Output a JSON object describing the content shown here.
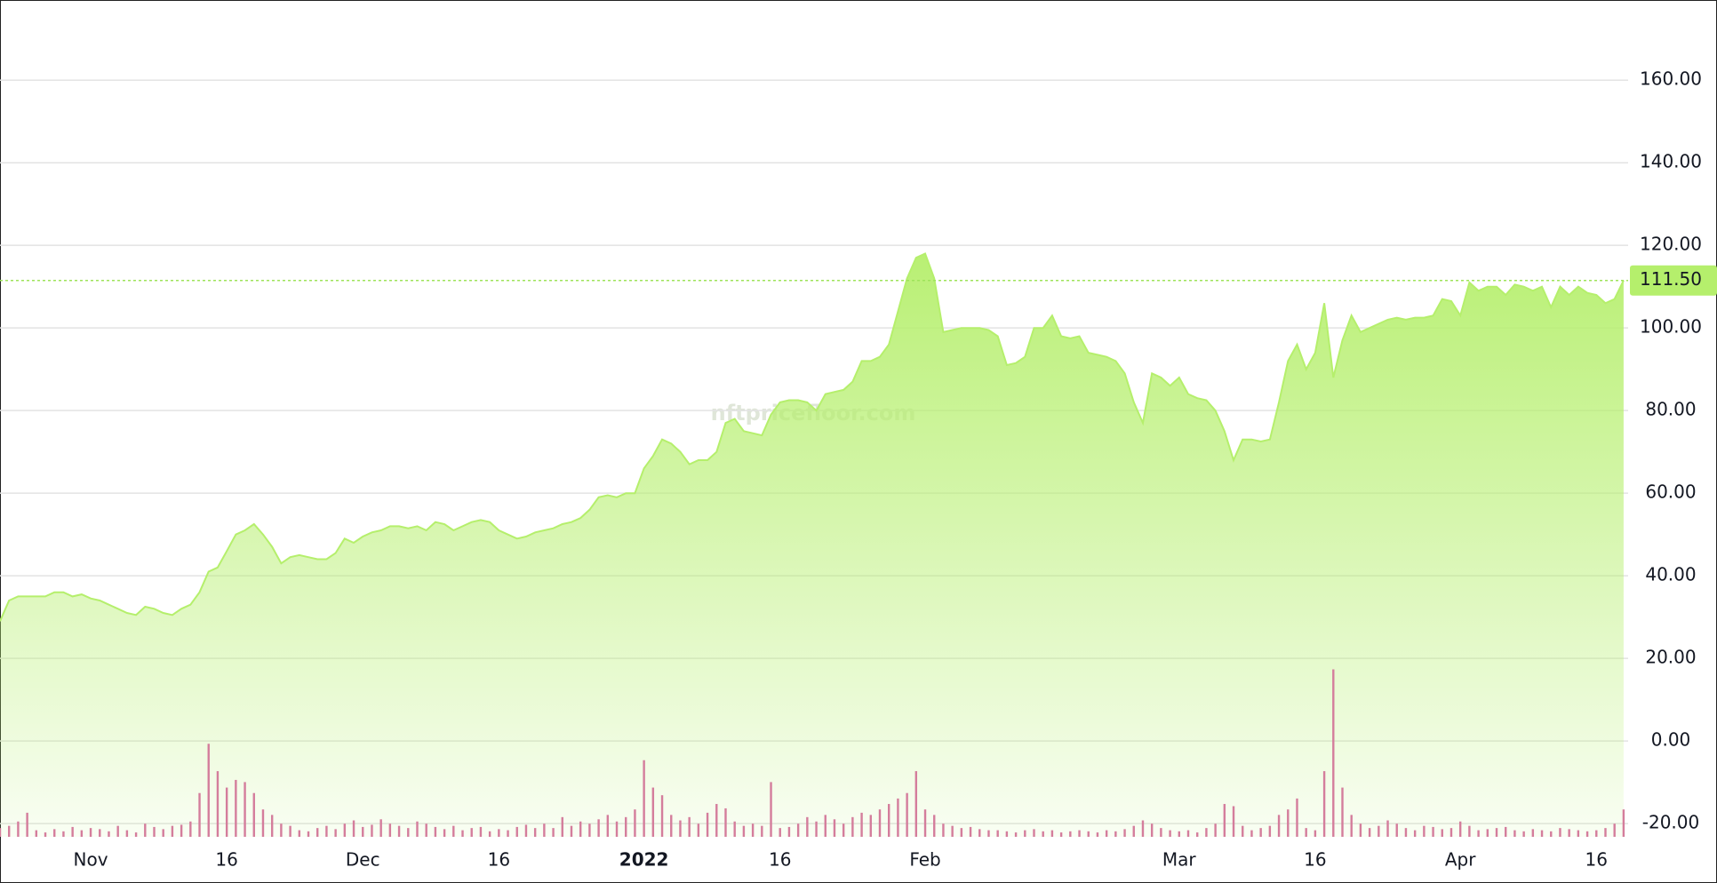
{
  "chart_data": {
    "type": "area",
    "watermark": "nftpricefloor.com",
    "color": "#b5ef6c",
    "values": [
      29,
      34,
      35,
      35,
      35,
      35,
      36,
      36,
      35,
      35.5,
      34.5,
      34,
      33,
      32,
      31,
      30.5,
      32.5,
      32,
      31,
      30.5,
      32,
      33,
      36,
      41,
      42,
      46,
      50,
      51,
      52.5,
      50,
      47,
      43,
      44.5,
      45,
      44.5,
      44,
      44,
      45.5,
      49,
      48,
      49.5,
      50.5,
      51,
      52,
      52,
      51.5,
      52,
      51,
      53,
      52.5,
      51,
      52,
      53,
      53.5,
      53,
      51,
      50,
      49,
      49.5,
      50.5,
      51,
      51.5,
      52.5,
      53,
      54,
      56,
      59,
      59.5,
      59,
      60,
      60,
      66,
      69,
      73,
      72,
      70,
      67,
      68,
      68,
      70,
      77,
      78,
      75,
      74.5,
      74,
      79,
      82,
      82.5,
      82.5,
      82,
      80,
      84,
      84.5,
      85,
      87,
      92,
      92,
      93,
      96,
      104,
      112,
      117,
      118,
      112,
      99,
      99.5,
      100,
      100,
      100,
      99.5,
      98,
      91,
      91.5,
      93,
      100,
      100,
      103,
      98,
      97.5,
      98,
      94,
      93.5,
      93,
      92,
      89,
      82,
      77,
      89,
      88,
      86,
      88,
      84,
      83,
      82.5,
      80,
      75,
      68,
      73,
      73,
      72.5,
      73,
      82,
      92,
      96,
      90,
      94,
      106,
      88,
      97,
      103,
      99,
      100,
      101,
      102,
      102.5,
      102,
      102.5,
      102.5,
      103,
      107,
      106.5,
      103,
      111,
      109,
      110,
      110,
      108,
      110.5,
      110,
      109,
      110,
      105,
      110,
      108,
      110,
      108.5,
      108,
      106,
      107,
      111.5
    ],
    "volume": {
      "color": "#d47d9c",
      "values": [
        8,
        10,
        14,
        22,
        6,
        4,
        7,
        5,
        9,
        6,
        8,
        7,
        5,
        10,
        6,
        4,
        12,
        9,
        7,
        10,
        11,
        14,
        40,
        85,
        60,
        45,
        52,
        50,
        40,
        25,
        20,
        12,
        10,
        6,
        5,
        8,
        10,
        7,
        12,
        15,
        9,
        11,
        16,
        12,
        10,
        8,
        14,
        12,
        9,
        7,
        10,
        6,
        8,
        9,
        5,
        7,
        6,
        9,
        11,
        8,
        12,
        8,
        18,
        10,
        14,
        12,
        16,
        20,
        14,
        18,
        25,
        70,
        45,
        38,
        20,
        15,
        18,
        12,
        22,
        30,
        26,
        14,
        10,
        12,
        10,
        50,
        8,
        9,
        12,
        18,
        14,
        20,
        16,
        12,
        18,
        22,
        20,
        25,
        30,
        35,
        40,
        60,
        25,
        20,
        12,
        10,
        8,
        9,
        7,
        6,
        6,
        5,
        4,
        6,
        7,
        5,
        6,
        4,
        5,
        6,
        5,
        4,
        6,
        5,
        7,
        10,
        15,
        12,
        8,
        6,
        5,
        6,
        4,
        8,
        12,
        30,
        28,
        10,
        6,
        8,
        10,
        20,
        25,
        35,
        8,
        6,
        60,
        153,
        45,
        20,
        12,
        8,
        10,
        15,
        12,
        8,
        6,
        10,
        9,
        7,
        8,
        14,
        10,
        6,
        7,
        8,
        9,
        6,
        5,
        7,
        6,
        5,
        8,
        7,
        6,
        5,
        6,
        8,
        12,
        25
      ]
    },
    "price_line": {
      "value": 111.5,
      "label": "111.50"
    },
    "xlim": [
      0,
      179.5
    ],
    "xticks": [
      {
        "value": 10,
        "label": "Nov"
      },
      {
        "value": 25,
        "label": "16"
      },
      {
        "value": 40,
        "label": "Dec"
      },
      {
        "value": 55,
        "label": "16"
      },
      {
        "value": 71,
        "label": "2022"
      },
      {
        "value": 86,
        "label": "16"
      },
      {
        "value": 102,
        "label": "Feb"
      },
      {
        "value": 130,
        "label": "Mar"
      },
      {
        "value": 145,
        "label": "16"
      },
      {
        "value": 161,
        "label": "Apr"
      },
      {
        "value": 176,
        "label": "16"
      }
    ],
    "ylim": [
      -23.2,
      179.4
    ],
    "yticks": [
      {
        "value": -20,
        "label": "-20.00"
      },
      {
        "value": 0,
        "label": "0.00"
      },
      {
        "value": 20,
        "label": "20.00"
      },
      {
        "value": 40,
        "label": "40.00"
      },
      {
        "value": 60,
        "label": "60.00"
      },
      {
        "value": 80,
        "label": "80.00"
      },
      {
        "value": 100,
        "label": "100.00"
      },
      {
        "value": 120,
        "label": "120.00"
      },
      {
        "value": 140,
        "label": "140.00"
      },
      {
        "value": 160,
        "label": "160.00"
      }
    ],
    "grid": true
  }
}
